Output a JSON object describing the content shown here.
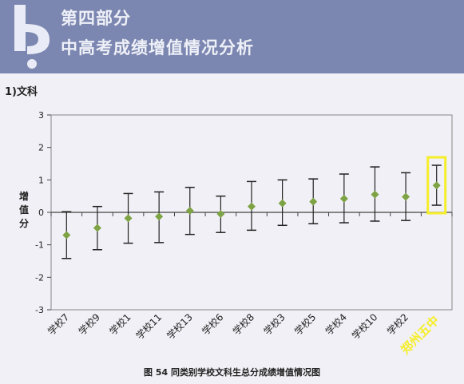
{
  "header": {
    "section_title": "第四部分",
    "section_subtitle": "中高考成绩增值情况分析"
  },
  "sub_heading": "1)文科",
  "caption": "图 54 同类别学校文科生总分成绩增值情况图",
  "highlight_label": "郑州五中",
  "colors": {
    "header": "#7c87b1",
    "marker": "#7da344",
    "highlight": "#f5ee2a",
    "axis": "#444444"
  },
  "chart_data": {
    "type": "errorbar",
    "ylabel": "增值分",
    "ylim": [
      -3,
      3
    ],
    "y_ticks": [
      -3,
      -2,
      -1,
      0,
      1,
      2,
      3
    ],
    "grid": false,
    "categories": [
      "学校7",
      "学校9",
      "学校1",
      "学校11",
      "学校13",
      "学校6",
      "学校8",
      "学校3",
      "学校5",
      "学校4",
      "学校10",
      "学校2",
      "郑州五中"
    ],
    "values": [
      -0.7,
      -0.48,
      -0.18,
      -0.13,
      0.05,
      -0.05,
      0.18,
      0.28,
      0.33,
      0.42,
      0.55,
      0.48,
      0.83
    ],
    "upper": [
      0.02,
      0.18,
      0.58,
      0.63,
      0.77,
      0.5,
      0.95,
      1.0,
      1.03,
      1.18,
      1.4,
      1.22,
      1.45
    ],
    "lower": [
      -1.42,
      -1.15,
      -0.95,
      -0.93,
      -0.68,
      -0.62,
      -0.55,
      -0.4,
      -0.35,
      -0.32,
      -0.27,
      -0.25,
      0.22
    ]
  }
}
